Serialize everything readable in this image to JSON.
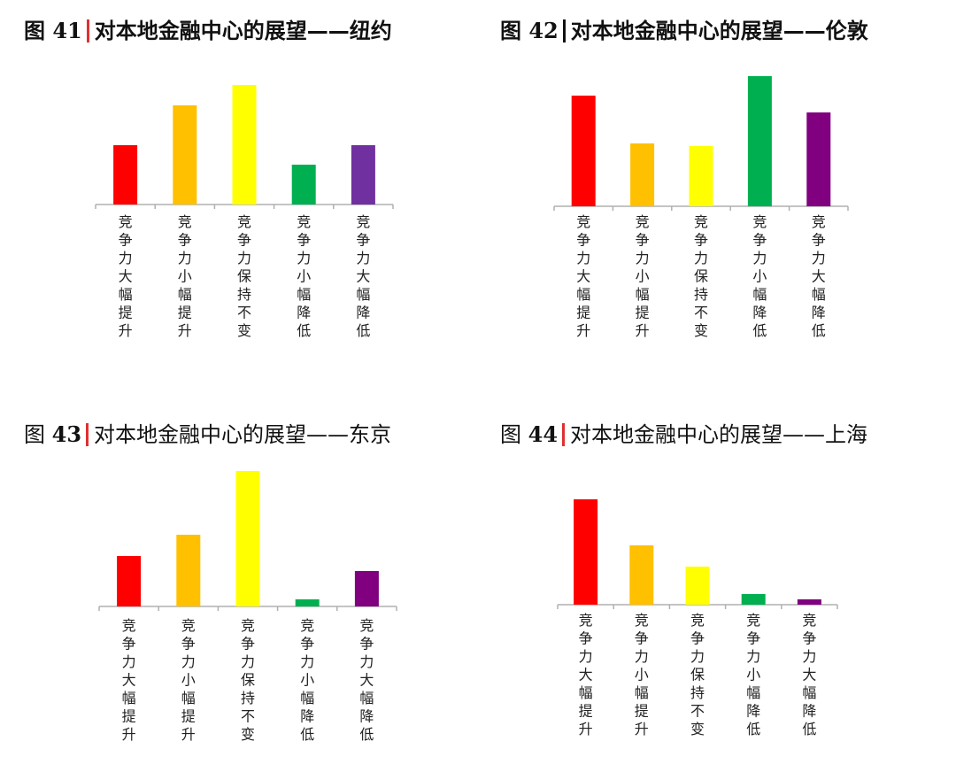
{
  "categories": [
    "竞争力大幅提升",
    "竞争力小幅提升",
    "竞争力保持不变",
    "竞争力小幅降低",
    "竞争力大幅降低"
  ],
  "chart_data": [
    {
      "type": "bar",
      "fig_label": "图",
      "fig_number": "41",
      "title": "对本地金融中心的展望——纽约",
      "categories": [
        "竞争力大幅提升",
        "竞争力小幅提升",
        "竞争力保持不变",
        "竞争力小幅降低",
        "竞争力大幅降低"
      ],
      "values": [
        67,
        112,
        135,
        45,
        67
      ],
      "colors": [
        "#ff0000",
        "#ffc000",
        "#ffff00",
        "#00b050",
        "#7030a0"
      ],
      "separator_color": "#e03030",
      "ylim": [
        0,
        140
      ]
    },
    {
      "type": "bar",
      "fig_label": "图",
      "fig_number": "42",
      "title": "对本地金融中心的展望——伦敦",
      "categories": [
        "竞争力大幅提升",
        "竞争力小幅提升",
        "竞争力保持不变",
        "竞争力小幅降低",
        "竞争力大幅降低"
      ],
      "values": [
        125,
        71,
        68,
        147,
        106
      ],
      "colors": [
        "#ff0000",
        "#ffc000",
        "#ffff00",
        "#00b050",
        "#800080"
      ],
      "separator_color": "#111111",
      "ylim": [
        0,
        150
      ]
    },
    {
      "type": "bar",
      "fig_label": "图",
      "fig_number": "43",
      "title": "对本地金融中心的展望——东京",
      "categories": [
        "竞争力大幅提升",
        "竞争力小幅提升",
        "竞争力保持不变",
        "竞争力小幅降低",
        "竞争力大幅降低"
      ],
      "values": [
        57,
        81,
        153,
        8,
        40
      ],
      "colors": [
        "#ff0000",
        "#ffc000",
        "#ffff00",
        "#00b050",
        "#800080"
      ],
      "separator_color": "#e03030",
      "ylim": [
        0,
        155
      ]
    },
    {
      "type": "bar",
      "fig_label": "图",
      "fig_number": "44",
      "title": "对本地金融中心的展望——上海",
      "categories": [
        "竞争力大幅提升",
        "竞争力小幅提升",
        "竞争力保持不变",
        "竞争力小幅降低",
        "竞争力大幅降低"
      ],
      "values": [
        119,
        67,
        43,
        12,
        6
      ],
      "colors": [
        "#ff0000",
        "#ffc000",
        "#ffff00",
        "#00b050",
        "#800080"
      ],
      "separator_color": "#e03030",
      "ylim": [
        0,
        125
      ]
    }
  ]
}
